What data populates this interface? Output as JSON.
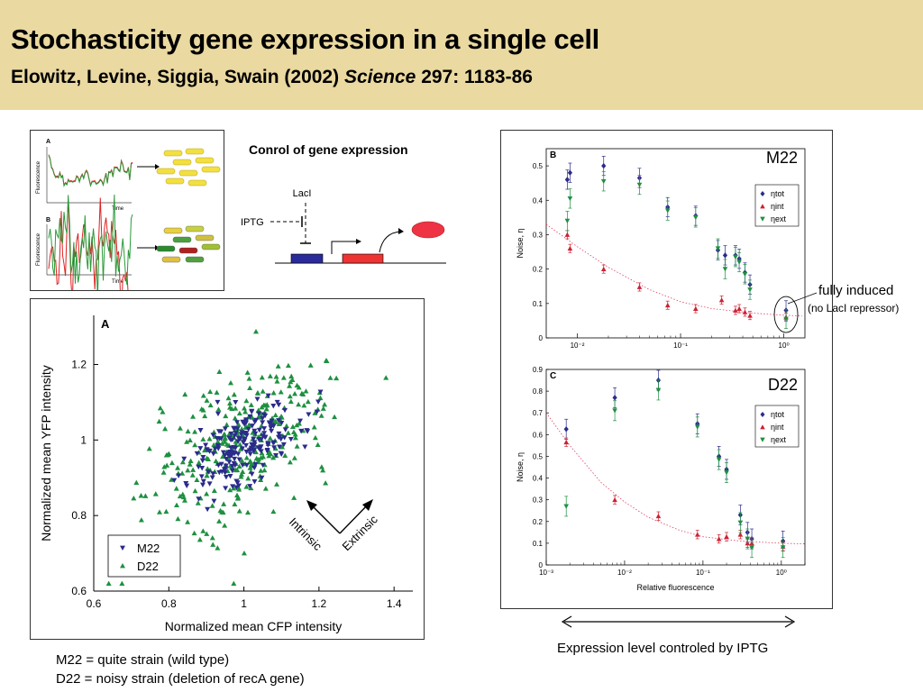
{
  "header": {
    "title": "Stochasticity gene expression in a single cell",
    "authors": "Elowitz, Levine, Siggia, Swain (2002)",
    "journal": "Science",
    "citation": "297: 1183-86",
    "background_color": "#ead9a0"
  },
  "trace_panel": {
    "label_a": "A",
    "label_b": "B",
    "ylabel": "Fluorescence",
    "xlabel": "Time"
  },
  "circuit": {
    "heading": "Conrol of gene expression",
    "repressor_label": "LacI",
    "inducer_label": "IPTG",
    "colors": {
      "operator": "#2a2a9a",
      "gene": "#ee3333",
      "protein": "#ee3344"
    }
  },
  "annotations": {
    "fully_induced": "fully induced",
    "no_repressor": "(no LacI repressor)",
    "expression_level": "Expression level controled by IPTG",
    "footnote_m22": "M22 = quite strain (wild type)",
    "footnote_d22": "D22 = noisy strain (deletion of recA gene)"
  },
  "chart_data": [
    {
      "type": "scatter",
      "panel_label": "A",
      "xlabel": "Normalized mean CFP intensity",
      "ylabel": "Normalized mean YFP intensity",
      "xlim": [
        0.6,
        1.45
      ],
      "ylim": [
        0.6,
        1.33
      ],
      "xticks": [
        "0.6",
        "0.8",
        "1",
        "1.2",
        "1.4"
      ],
      "yticks": [
        "0.6",
        "0.8",
        "1",
        "1.2"
      ],
      "legend": {
        "position": "bottom-left",
        "entries": [
          "M22",
          "D22"
        ]
      },
      "arrows": {
        "intrinsic": "Intrinsic",
        "extrinsic": "Extrinsic"
      },
      "series": [
        {
          "name": "M22",
          "marker": "triangle-down",
          "color": "#2b2b8c",
          "spread_x": 0.075,
          "spread_y": 0.06,
          "count": 200
        },
        {
          "name": "D22",
          "marker": "triangle-up",
          "color": "#1e9040",
          "spread_x": 0.12,
          "spread_y": 0.11,
          "count": 320
        }
      ],
      "series_center": [
        1.0,
        0.99
      ]
    },
    {
      "type": "scatter",
      "panel_label": "B",
      "strain": "M22",
      "xscale": "log",
      "xlim": [
        0.005,
        1.6
      ],
      "ylim": [
        0,
        0.55
      ],
      "ylabel": "Noise, η",
      "xticks": [
        "10⁻²",
        "10⁻¹",
        "10⁰"
      ],
      "yticks": [
        "0",
        "0.1",
        "0.2",
        "0.3",
        "0.4",
        "0.5"
      ],
      "legend": {
        "position": "top-right",
        "entries": [
          "ηtot",
          "ηint",
          "ηext"
        ]
      },
      "series": [
        {
          "name": "ηtot",
          "color": "#2b2b8c",
          "x": [
            0.008,
            0.0085,
            0.018,
            0.04,
            0.075,
            0.14,
            0.23,
            0.27,
            0.34,
            0.37,
            0.42,
            0.47,
            1.05
          ],
          "y": [
            0.46,
            0.48,
            0.5,
            0.465,
            0.38,
            0.355,
            0.255,
            0.24,
            0.24,
            0.23,
            0.19,
            0.155,
            0.08
          ]
        },
        {
          "name": "ηint",
          "color": "#cc2233",
          "x": [
            0.008,
            0.0085,
            0.018,
            0.04,
            0.075,
            0.14,
            0.25,
            0.34,
            0.37,
            0.42,
            0.47,
            1.05
          ],
          "y": [
            0.3,
            0.26,
            0.2,
            0.148,
            0.095,
            0.085,
            0.11,
            0.08,
            0.085,
            0.075,
            0.065,
            0.06
          ]
        },
        {
          "name": "ηext",
          "color": "#1e9040",
          "x": [
            0.008,
            0.0085,
            0.018,
            0.04,
            0.075,
            0.14,
            0.23,
            0.27,
            0.34,
            0.37,
            0.42,
            0.47,
            1.05
          ],
          "y": [
            0.34,
            0.405,
            0.455,
            0.445,
            0.37,
            0.35,
            0.26,
            0.2,
            0.235,
            0.22,
            0.185,
            0.14,
            0.055
          ]
        }
      ],
      "fit_curve": {
        "x": [
          0.005,
          0.01,
          0.02,
          0.05,
          0.1,
          0.2,
          0.5,
          1.0,
          1.5
        ],
        "y": [
          0.33,
          0.265,
          0.205,
          0.14,
          0.105,
          0.085,
          0.072,
          0.066,
          0.064
        ]
      }
    },
    {
      "type": "scatter",
      "panel_label": "C",
      "strain": "D22",
      "xscale": "log",
      "xlim": [
        0.001,
        2
      ],
      "ylim": [
        0,
        0.9
      ],
      "ylabel": "Noise, η",
      "xlabel": "Relative fluorescence",
      "xticks": [
        "10⁻³",
        "10⁻²",
        "10⁻¹",
        "10⁰"
      ],
      "yticks": [
        "0",
        "0.1",
        "0.2",
        "0.3",
        "0.4",
        "0.5",
        "0.6",
        "0.7",
        "0.8",
        "0.9"
      ],
      "legend": {
        "position": "top-right",
        "entries": [
          "ηtot",
          "ηint",
          "ηext"
        ]
      },
      "series": [
        {
          "name": "ηtot",
          "color": "#2b2b8c",
          "x": [
            0.0018,
            0.0075,
            0.027,
            0.085,
            0.16,
            0.2,
            0.3,
            0.37,
            0.42,
            1.05
          ],
          "y": [
            0.625,
            0.77,
            0.85,
            0.65,
            0.5,
            0.44,
            0.23,
            0.15,
            0.12,
            0.11
          ]
        },
        {
          "name": "ηint",
          "color": "#cc2233",
          "x": [
            0.0018,
            0.0075,
            0.027,
            0.085,
            0.16,
            0.2,
            0.3,
            0.37,
            0.42,
            1.05
          ],
          "y": [
            0.565,
            0.3,
            0.225,
            0.14,
            0.12,
            0.13,
            0.14,
            0.1,
            0.1,
            0.085
          ]
        },
        {
          "name": "ηext",
          "color": "#1e9040",
          "x": [
            0.0018,
            0.0075,
            0.027,
            0.085,
            0.16,
            0.2,
            0.3,
            0.37,
            0.42,
            1.05
          ],
          "y": [
            0.27,
            0.71,
            0.805,
            0.635,
            0.485,
            0.425,
            0.195,
            0.12,
            0.08,
            0.08
          ]
        }
      ],
      "fit_curve": {
        "x": [
          0.001,
          0.002,
          0.005,
          0.01,
          0.02,
          0.05,
          0.1,
          0.3,
          1.0,
          2.0
        ],
        "y": [
          0.7,
          0.55,
          0.38,
          0.29,
          0.22,
          0.16,
          0.13,
          0.11,
          0.1,
          0.097
        ]
      }
    }
  ],
  "panel_labels": {
    "m22": "M22",
    "d22": "D22"
  }
}
